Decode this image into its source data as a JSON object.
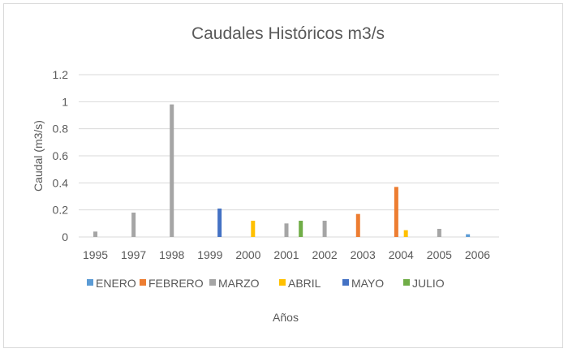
{
  "chart_data": {
    "type": "bar",
    "title": "Caudales Históricos m3/s",
    "xlabel": "Años",
    "ylabel": "Caudal (m3/s)",
    "ylim": [
      0,
      1.2
    ],
    "yticks": [
      "0",
      "0.2",
      "0.4",
      "0.6",
      "0.8",
      "1",
      "1.2"
    ],
    "grid": true,
    "legend_position": "bottom",
    "categories": [
      "1995",
      "1997",
      "1998",
      "1999",
      "2000",
      "2001",
      "2002",
      "2003",
      "2004",
      "2005",
      "2006"
    ],
    "series": [
      {
        "name": "ENERO",
        "color": "#5B9BD5",
        "values": [
          null,
          null,
          null,
          null,
          null,
          null,
          null,
          null,
          null,
          null,
          0.02
        ]
      },
      {
        "name": "FEBRERO",
        "color": "#ED7D31",
        "values": [
          null,
          null,
          null,
          null,
          null,
          null,
          null,
          0.17,
          0.37,
          null,
          null
        ]
      },
      {
        "name": "MARZO",
        "color": "#A5A5A5",
        "values": [
          0.04,
          0.18,
          0.98,
          null,
          null,
          0.1,
          0.12,
          null,
          null,
          0.06,
          null
        ]
      },
      {
        "name": "ABRIL",
        "color": "#FFC000",
        "values": [
          null,
          null,
          null,
          null,
          0.12,
          null,
          null,
          null,
          0.05,
          null,
          null
        ]
      },
      {
        "name": "MAYO",
        "color": "#4472C4",
        "values": [
          null,
          null,
          null,
          0.21,
          null,
          null,
          null,
          null,
          null,
          null,
          null
        ]
      },
      {
        "name": "JULIO",
        "color": "#70AD47",
        "values": [
          null,
          null,
          null,
          null,
          null,
          0.12,
          null,
          null,
          null,
          null,
          null
        ]
      }
    ]
  }
}
